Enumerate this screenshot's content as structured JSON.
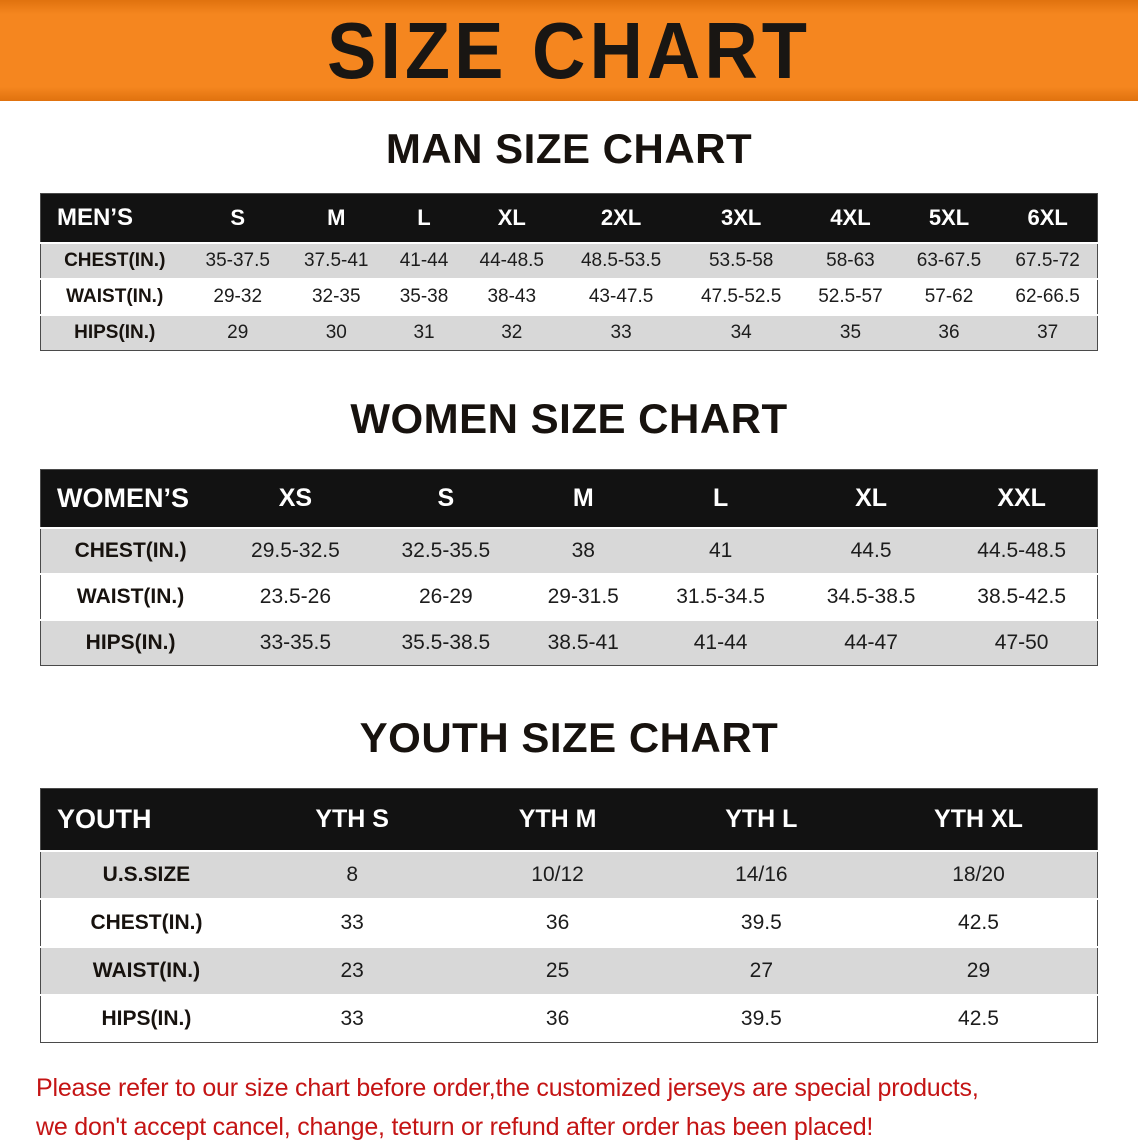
{
  "banner": {
    "title": "SIZE CHART"
  },
  "colors": {
    "banner_bg": "#F5861F",
    "header_bg": "#121212",
    "stripe": "#D8D8D8",
    "disclaimer_color": "#C41414"
  },
  "sections": [
    {
      "heading": "MAN SIZE CHART",
      "table": {
        "header": [
          "MEN’S",
          "S",
          "M",
          "L",
          "XL",
          "2XL",
          "3XL",
          "4XL",
          "5XL",
          "6XL"
        ],
        "rows": [
          [
            "CHEST(IN.)",
            "35-37.5",
            "37.5-41",
            "41-44",
            "44-48.5",
            "48.5-53.5",
            "53.5-58",
            "58-63",
            "63-67.5",
            "67.5-72"
          ],
          [
            "WAIST(IN.)",
            "29-32",
            "32-35",
            "35-38",
            "38-43",
            "43-47.5",
            "47.5-52.5",
            "52.5-57",
            "57-62",
            "62-66.5"
          ],
          [
            "HIPS(IN.)",
            "29",
            "30",
            "31",
            "32",
            "33",
            "34",
            "35",
            "36",
            "37"
          ]
        ]
      }
    },
    {
      "heading": "WOMEN SIZE CHART",
      "table": {
        "header": [
          "WOMEN’S",
          "XS",
          "S",
          "M",
          "L",
          "XL",
          "XXL"
        ],
        "rows": [
          [
            "CHEST(IN.)",
            "29.5-32.5",
            "32.5-35.5",
            "38",
            "41",
            "44.5",
            "44.5-48.5"
          ],
          [
            "WAIST(IN.)",
            "23.5-26",
            "26-29",
            "29-31.5",
            "31.5-34.5",
            "34.5-38.5",
            "38.5-42.5"
          ],
          [
            "HIPS(IN.)",
            "33-35.5",
            "35.5-38.5",
            "38.5-41",
            "41-44",
            "44-47",
            "47-50"
          ]
        ]
      }
    },
    {
      "heading": "YOUTH SIZE CHART",
      "table": {
        "header": [
          "YOUTH",
          "YTH S",
          "YTH M",
          "YTH L",
          "YTH XL"
        ],
        "rows": [
          [
            "U.S.SIZE",
            "8",
            "10/12",
            "14/16",
            "18/20"
          ],
          [
            "CHEST(IN.)",
            "33",
            "36",
            "39.5",
            "42.5"
          ],
          [
            "WAIST(IN.)",
            "23",
            "25",
            "27",
            "29"
          ],
          [
            "HIPS(IN.)",
            "33",
            "36",
            "39.5",
            "42.5"
          ]
        ]
      }
    }
  ],
  "disclaimer": {
    "line1": "Please refer to our size chart before order,the customized jerseys are special products,",
    "line2": "we don't accept cancel, change, teturn or refund after order has been placed!"
  }
}
